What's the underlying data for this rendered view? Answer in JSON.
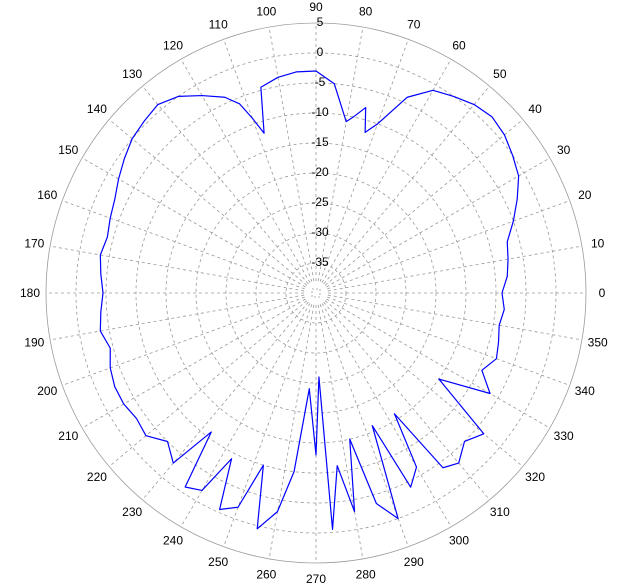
{
  "chart_data": {
    "type": "line",
    "projection": "polar",
    "title": "",
    "angle_unit": "degrees",
    "angle_zero": "right",
    "angle_direction": "counterclockwise",
    "angular_ticks": [
      "0",
      "10",
      "20",
      "30",
      "40",
      "50",
      "60",
      "70",
      "80",
      "90",
      "100",
      "110",
      "120",
      "130",
      "140",
      "150",
      "160",
      "170",
      "180",
      "190",
      "200",
      "210",
      "220",
      "230",
      "240",
      "250",
      "260",
      "270",
      "280",
      "290",
      "300",
      "310",
      "320",
      "330",
      "340",
      "350"
    ],
    "radial_ticks": [
      "5",
      "0",
      "-5",
      "-10",
      "-15",
      "-20",
      "-25",
      "-30",
      "-35"
    ],
    "radial_range": [
      -40,
      5
    ],
    "grid": true,
    "series": [
      {
        "color": "#0000ff",
        "angles": [
          0,
          5,
          10,
          15,
          20,
          25,
          30,
          35,
          40,
          45,
          50,
          55,
          60,
          65,
          70,
          73,
          75,
          78,
          80,
          85,
          90,
          95,
          100,
          105,
          108,
          110,
          112,
          115,
          120,
          125,
          130,
          135,
          140,
          145,
          150,
          155,
          160,
          165,
          170,
          175,
          180,
          185,
          190,
          195,
          200,
          205,
          210,
          215,
          220,
          225,
          230,
          233,
          236,
          240,
          243,
          246,
          250,
          253,
          256,
          260,
          263,
          266,
          270,
          272,
          274,
          277,
          280,
          283,
          286,
          290,
          293,
          296,
          300,
          303,
          306,
          310,
          315,
          320,
          325,
          330,
          335,
          340,
          345,
          350,
          355,
          360
        ],
        "values": [
          -9,
          -8,
          -7.5,
          -7,
          -5,
          -3,
          -1,
          0,
          1,
          1.5,
          1,
          0,
          -1,
          -4,
          -10,
          -12,
          -8,
          -10,
          -11,
          -5,
          -3,
          -3,
          -3.5,
          -4.5,
          -12,
          -9,
          -6,
          -4,
          -2,
          0,
          1,
          0.5,
          0,
          -1,
          -2,
          -3,
          -3.5,
          -4,
          -3.5,
          -4,
          -4.5,
          -4,
          -3.5,
          -4.5,
          -3.5,
          -3,
          -3,
          -3.5,
          -3,
          -5,
          -3,
          -11,
          -1,
          -2,
          -9,
          -0.5,
          -2,
          -10,
          0.5,
          -3,
          -10,
          -24,
          -13,
          -26,
          -0.5,
          -11,
          -3,
          -15,
          -3.5,
          0,
          -16,
          -4,
          -6.5,
          -16,
          -4,
          -3,
          -5,
          -3.5,
          -15,
          -6.5,
          -9.5,
          -8,
          -8.5,
          -9,
          -8.5,
          -9
        ]
      }
    ]
  }
}
